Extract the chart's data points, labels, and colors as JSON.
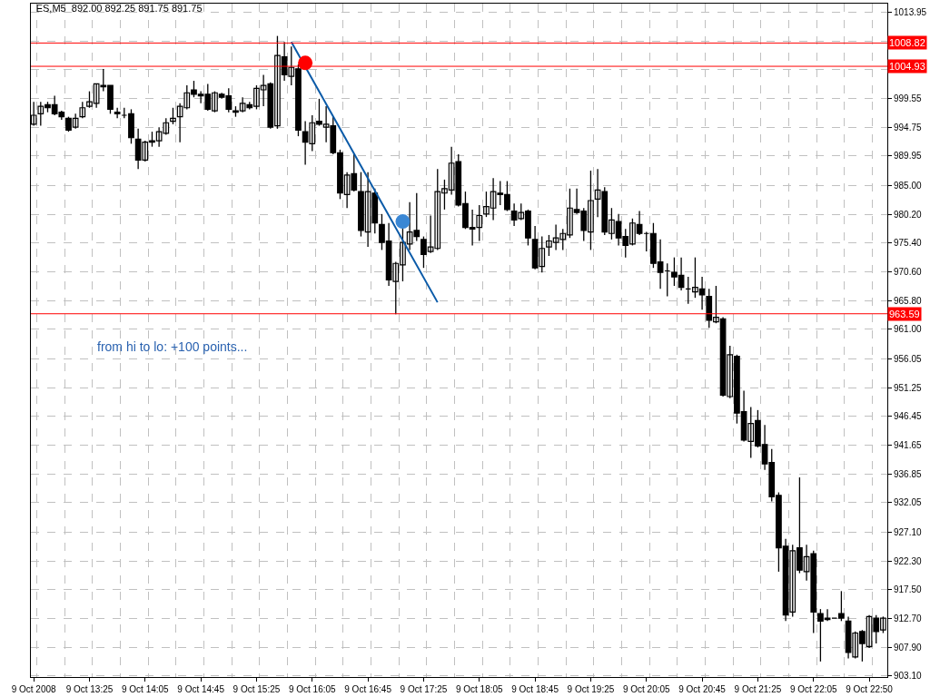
{
  "chart_data": {
    "type": "candlestick",
    "title": "ES,M5  892.00 892.25 891.75 891.75",
    "categories": [
      "9 Oct 2008",
      null,
      null,
      null,
      null,
      null,
      null,
      null,
      "9 Oct 13:25",
      null,
      null,
      null,
      null,
      null,
      null,
      null,
      "9 Oct 14:05",
      null,
      null,
      null,
      null,
      null,
      null,
      null,
      "9 Oct 14:45",
      null,
      null,
      null,
      null,
      null,
      null,
      null,
      "9 Oct 15:25",
      null,
      null,
      null,
      null,
      null,
      null,
      null,
      "9 Oct 16:05",
      null,
      null,
      null,
      null,
      null,
      null,
      null,
      "9 Oct 16:45",
      null,
      null,
      null,
      null,
      null,
      null,
      null,
      "9 Oct 17:25",
      null,
      null,
      null,
      null,
      null,
      null,
      null,
      "9 Oct 18:05",
      null,
      null,
      null,
      null,
      null,
      null,
      null,
      "9 Oct 18:45",
      null,
      null,
      null,
      null,
      null,
      null,
      null,
      "9 Oct 19:25",
      null,
      null,
      null,
      null,
      null,
      null,
      null,
      "9 Oct 20:05",
      null,
      null,
      null,
      null,
      null,
      null,
      null,
      "9 Oct 20:45",
      null,
      null,
      null,
      null,
      null,
      null,
      null,
      "9 Oct 21:25",
      null,
      null,
      null,
      null,
      null,
      null,
      null,
      "9 Oct 22:05",
      null,
      null,
      null,
      null,
      null,
      null,
      null,
      "9 Oct 22:50",
      null,
      null
    ],
    "ohlc": [
      [
        995.25,
        999.0,
        995.0,
        996.75
      ],
      [
        997.0,
        999.0,
        995.0,
        998.25
      ],
      [
        998.5,
        999.0,
        997.25,
        998.0
      ],
      [
        998.5,
        1000.0,
        996.75,
        997.0
      ],
      [
        997.25,
        997.5,
        996.0,
        996.5
      ],
      [
        996.25,
        996.5,
        994.0,
        994.25
      ],
      [
        994.75,
        997.0,
        994.5,
        996.25
      ],
      [
        996.5,
        999.0,
        996.25,
        998.0
      ],
      [
        998.25,
        1000.75,
        998.0,
        999.0
      ],
      [
        998.75,
        1002.0,
        998.0,
        1002.0
      ],
      [
        1001.75,
        1004.5,
        1000.75,
        1001.5
      ],
      [
        1001.75,
        1001.75,
        997.0,
        997.75
      ],
      [
        997.25,
        998.0,
        996.25,
        997.0
      ],
      [
        996.75,
        998.0,
        996.25,
        996.75
      ],
      [
        997.0,
        997.75,
        992.0,
        993.0
      ],
      [
        992.75,
        994.5,
        987.75,
        989.25
      ],
      [
        989.25,
        992.5,
        989.0,
        992.25
      ],
      [
        992.5,
        994.0,
        991.5,
        992.25
      ],
      [
        992.5,
        994.75,
        991.5,
        994.0
      ],
      [
        993.75,
        996.25,
        993.5,
        995.5
      ],
      [
        995.75,
        998.0,
        995.25,
        996.25
      ],
      [
        996.5,
        998.75,
        992.25,
        998.25
      ],
      [
        998.0,
        1001.75,
        997.75,
        1000.5
      ],
      [
        1001.0,
        1002.5,
        999.75,
        1000.25
      ],
      [
        1000.25,
        1000.75,
        998.75,
        1000.0
      ],
      [
        1000.25,
        1002.0,
        997.5,
        997.75
      ],
      [
        997.5,
        1000.75,
        997.25,
        1000.5
      ],
      [
        1000.25,
        1000.5,
        999.5,
        999.75
      ],
      [
        1000.0,
        1001.25,
        997.25,
        997.75
      ],
      [
        997.5,
        998.25,
        996.5,
        997.25
      ],
      [
        997.5,
        999.75,
        997.25,
        998.75
      ],
      [
        998.5,
        999.0,
        997.75,
        998.0
      ],
      [
        998.25,
        1001.75,
        997.75,
        1001.25
      ],
      [
        1001.0,
        1003.5,
        998.25,
        1001.75
      ],
      [
        1002.0,
        1002.25,
        994.5,
        994.75
      ],
      [
        995.0,
        1010.0,
        994.5,
        1006.75
      ],
      [
        1006.5,
        1009.0,
        1002.5,
        1003.5
      ],
      [
        1003.25,
        1008.25,
        1001.75,
        1004.75
      ],
      [
        1004.5,
        1005.25,
        993.25,
        994.25
      ],
      [
        994.0,
        995.75,
        988.5,
        992.25
      ],
      [
        992.0,
        996.75,
        990.75,
        995.5
      ],
      [
        995.75,
        999.5,
        995.0,
        995.25
      ],
      [
        994.75,
        998.25,
        992.25,
        995.25
      ],
      [
        995.0,
        996.5,
        990.25,
        990.5
      ],
      [
        990.5,
        991.0,
        982.75,
        983.75
      ],
      [
        983.5,
        987.25,
        981.25,
        986.75
      ],
      [
        987.0,
        990.25,
        984.0,
        984.25
      ],
      [
        984.0,
        987.25,
        976.5,
        977.5
      ],
      [
        977.25,
        987.25,
        974.75,
        984.0
      ],
      [
        983.75,
        984.5,
        977.0,
        978.75
      ],
      [
        978.5,
        980.25,
        974.25,
        975.5
      ],
      [
        975.75,
        978.75,
        968.25,
        969.25
      ],
      [
        969.0,
        972.25,
        963.5,
        972.0
      ],
      [
        971.75,
        978.25,
        969.0,
        975.5
      ],
      [
        975.25,
        982.25,
        974.25,
        977.25
      ],
      [
        977.5,
        983.75,
        975.75,
        976.5
      ],
      [
        976.0,
        976.5,
        971.25,
        973.5
      ],
      [
        974.0,
        980.0,
        973.75,
        974.75
      ],
      [
        974.5,
        987.75,
        974.25,
        984.0
      ],
      [
        983.75,
        986.0,
        981.0,
        984.5
      ],
      [
        984.25,
        991.5,
        983.5,
        988.75
      ],
      [
        989.0,
        990.25,
        981.5,
        981.75
      ],
      [
        982.0,
        984.0,
        977.75,
        978.0
      ],
      [
        978.0,
        981.0,
        975.0,
        977.75
      ],
      [
        978.0,
        981.75,
        975.75,
        980.0
      ],
      [
        980.25,
        984.0,
        979.75,
        981.5
      ],
      [
        981.25,
        986.25,
        979.25,
        984.0
      ],
      [
        983.75,
        985.75,
        981.75,
        983.5
      ],
      [
        983.5,
        985.75,
        980.75,
        981.0
      ],
      [
        980.75,
        982.0,
        978.25,
        979.25
      ],
      [
        979.5,
        982.0,
        979.25,
        980.5
      ],
      [
        980.75,
        981.0,
        975.0,
        976.25
      ],
      [
        976.0,
        978.25,
        971.0,
        971.25
      ],
      [
        971.5,
        976.5,
        970.5,
        974.5
      ],
      [
        974.75,
        976.75,
        973.25,
        975.75
      ],
      [
        975.5,
        978.5,
        974.25,
        976.25
      ],
      [
        976.0,
        977.75,
        974.25,
        977.0
      ],
      [
        976.75,
        984.5,
        976.25,
        981.25
      ],
      [
        981.0,
        984.5,
        980.25,
        980.5
      ],
      [
        980.75,
        981.25,
        975.75,
        977.5
      ],
      [
        977.25,
        987.5,
        974.25,
        982.5
      ],
      [
        982.75,
        987.75,
        979.75,
        984.25
      ],
      [
        984.0,
        984.75,
        976.75,
        977.25
      ],
      [
        977.0,
        981.25,
        976.0,
        979.25
      ],
      [
        979.0,
        980.25,
        975.0,
        976.25
      ],
      [
        976.5,
        977.75,
        973.0,
        975.0
      ],
      [
        975.25,
        979.5,
        975.0,
        978.75
      ],
      [
        978.5,
        980.75,
        976.75,
        977.0
      ],
      [
        977.0,
        977.25,
        974.0,
        977.0
      ],
      [
        977.0,
        978.75,
        971.25,
        972.0
      ],
      [
        972.25,
        976.0,
        967.75,
        970.5
      ],
      [
        970.75,
        972.0,
        966.5,
        970.75
      ],
      [
        970.5,
        973.0,
        968.25,
        969.75
      ],
      [
        970.0,
        973.0,
        967.5,
        968.0
      ],
      [
        967.75,
        969.75,
        965.25,
        967.75
      ],
      [
        967.25,
        973.0,
        966.25,
        968.0
      ],
      [
        967.75,
        969.75,
        964.25,
        966.75
      ],
      [
        966.5,
        967.75,
        961.25,
        962.5
      ],
      [
        962.25,
        968.25,
        962.0,
        963.0
      ],
      [
        962.75,
        963.0,
        949.75,
        950.0
      ],
      [
        949.75,
        958.25,
        949.5,
        956.75
      ],
      [
        956.5,
        956.75,
        945.25,
        947.0
      ],
      [
        947.25,
        950.75,
        942.25,
        942.5
      ],
      [
        942.25,
        948.0,
        939.5,
        945.25
      ],
      [
        945.75,
        947.5,
        941.25,
        941.5
      ],
      [
        941.75,
        945.0,
        937.5,
        938.5
      ],
      [
        938.75,
        941.0,
        932.25,
        933.0
      ],
      [
        933.25,
        933.75,
        920.5,
        924.5
      ],
      [
        924.75,
        926.0,
        912.25,
        913.25
      ],
      [
        913.75,
        925.0,
        913.0,
        924.0
      ],
      [
        924.5,
        936.25,
        920.25,
        920.75
      ],
      [
        920.5,
        925.0,
        919.0,
        923.0
      ],
      [
        923.5,
        924.0,
        910.25,
        913.75
      ],
      [
        913.5,
        914.25,
        905.5,
        912.25
      ],
      [
        912.75,
        914.25,
        912.25,
        912.5
      ],
      [
        912.75,
        912.75,
        912.75,
        912.75
      ],
      [
        913.5,
        917.25,
        912.25,
        912.75
      ],
      [
        912.25,
        913.0,
        906.0,
        907.0
      ],
      [
        906.25,
        910.5,
        906.0,
        910.25
      ],
      [
        910.5,
        910.75,
        905.5,
        908.5
      ],
      [
        908.0,
        913.25,
        907.75,
        913.0
      ],
      [
        912.75,
        913.25,
        908.5,
        910.5
      ],
      [
        910.75,
        913.0,
        910.25,
        912.75
      ]
    ],
    "color": "#000000",
    "ylim": [
      902.9,
      1015.4
    ],
    "yticks": [
      {
        "value": 903.1,
        "label": "903.10"
      },
      {
        "value": 907.9,
        "label": "907.90"
      },
      {
        "value": 912.7,
        "label": "912.70"
      },
      {
        "value": 917.5,
        "label": "917.50"
      },
      {
        "value": 922.3,
        "label": "922.30"
      },
      {
        "value": 927.1,
        "label": "927.10"
      },
      {
        "value": 932.05,
        "label": "932.05"
      },
      {
        "value": 936.85,
        "label": "936.85"
      },
      {
        "value": 941.65,
        "label": "941.65"
      },
      {
        "value": 946.45,
        "label": "946.45"
      },
      {
        "value": 951.25,
        "label": "951.25"
      },
      {
        "value": 956.05,
        "label": "956.05"
      },
      {
        "value": 961.0,
        "label": "961.00"
      },
      {
        "value": 965.8,
        "label": "965.80"
      },
      {
        "value": 970.6,
        "label": "970.60"
      },
      {
        "value": 975.4,
        "label": "975.40"
      },
      {
        "value": 980.2,
        "label": "980.20"
      },
      {
        "value": 985.0,
        "label": "985.00"
      },
      {
        "value": 989.95,
        "label": "989.95"
      },
      {
        "value": 994.75,
        "label": "994.75"
      },
      {
        "value": 999.55,
        "label": "999.55"
      },
      {
        "value": 1004.35,
        "label": null
      },
      {
        "value": 1009.15,
        "label": null
      },
      {
        "value": 1013.95,
        "label": "1013.95"
      }
    ],
    "grid": true,
    "ref_lines": [
      {
        "axis": "y",
        "value": 1008.82,
        "label": "1008.82",
        "color": "#ff0000"
      },
      {
        "axis": "y",
        "value": 1004.93,
        "label": "1004.93",
        "color": "#ff0000"
      },
      {
        "axis": "y",
        "value": 963.59,
        "label": "963.59",
        "color": "#ff0000"
      }
    ],
    "series": [
      {
        "type": "line",
        "color": "#0a5aa8",
        "values": [
          null,
          null,
          null,
          null,
          null,
          null,
          null,
          null,
          null,
          null,
          null,
          null,
          null,
          null,
          null,
          null,
          null,
          null,
          null,
          null,
          null,
          null,
          null,
          null,
          null,
          null,
          null,
          null,
          null,
          null,
          null,
          null,
          null,
          null,
          null,
          null,
          null,
          1009.0,
          null,
          null,
          null,
          null,
          null,
          null,
          null,
          null,
          null,
          null,
          null,
          null,
          null,
          null,
          null,
          null,
          null,
          null,
          null,
          null,
          965.5,
          null,
          null,
          null,
          null,
          null,
          null,
          null,
          null,
          null,
          null,
          null,
          null,
          null,
          null,
          null,
          null,
          null,
          null,
          null,
          null,
          null,
          null,
          null,
          null,
          null,
          null,
          null,
          null,
          null,
          null,
          null,
          null,
          null,
          null,
          null,
          null,
          null,
          null,
          null,
          null,
          null,
          null,
          null,
          null,
          null,
          null,
          null,
          null,
          null,
          null,
          null,
          null,
          null,
          null,
          null,
          null,
          null,
          null,
          null,
          null,
          null,
          null,
          null,
          null
        ]
      },
      {
        "type": "scatter",
        "color": "#ff0000",
        "marker": "circle",
        "values": [
          null,
          null,
          null,
          null,
          null,
          null,
          null,
          null,
          null,
          null,
          null,
          null,
          null,
          null,
          null,
          null,
          null,
          null,
          null,
          null,
          null,
          null,
          null,
          null,
          null,
          null,
          null,
          null,
          null,
          null,
          null,
          null,
          null,
          null,
          null,
          null,
          null,
          null,
          null,
          1005.5,
          null,
          null,
          null,
          null,
          null,
          null,
          null,
          null,
          null,
          null,
          null,
          null,
          null,
          null,
          null,
          null,
          null,
          null,
          null,
          null,
          null,
          null,
          null,
          null,
          null,
          null,
          null,
          null,
          null,
          null,
          null,
          null,
          null,
          null,
          null,
          null,
          null,
          null,
          null,
          null,
          null,
          null,
          null,
          null,
          null,
          null,
          null,
          null,
          null,
          null,
          null,
          null,
          null,
          null,
          null,
          null,
          null,
          null,
          null,
          null,
          null,
          null,
          null,
          null,
          null,
          null,
          null,
          null,
          null,
          null,
          null,
          null,
          null,
          null,
          null,
          null,
          null,
          null,
          null,
          null,
          null,
          null,
          null
        ]
      },
      {
        "type": "scatter",
        "color": "#3a87d4",
        "marker": "circle",
        "values": [
          null,
          null,
          null,
          null,
          null,
          null,
          null,
          null,
          null,
          null,
          null,
          null,
          null,
          null,
          null,
          null,
          null,
          null,
          null,
          null,
          null,
          null,
          null,
          null,
          null,
          null,
          null,
          null,
          null,
          null,
          null,
          null,
          null,
          null,
          null,
          null,
          null,
          null,
          null,
          null,
          null,
          null,
          null,
          null,
          null,
          null,
          null,
          null,
          null,
          null,
          null,
          null,
          null,
          979.0,
          null,
          null,
          null,
          null,
          null,
          null,
          null,
          null,
          null,
          null,
          null,
          null,
          null,
          null,
          null,
          null,
          null,
          null,
          null,
          null,
          null,
          null,
          null,
          null,
          null,
          null,
          null,
          null,
          null,
          null,
          null,
          null,
          null,
          null,
          null,
          null,
          null,
          null,
          null,
          null,
          null,
          null,
          null,
          null,
          null,
          null,
          null,
          null,
          null,
          null,
          null,
          null,
          null,
          null,
          null,
          null,
          null,
          null,
          null,
          null,
          null,
          null,
          null,
          null,
          null,
          null,
          null,
          null,
          null
        ]
      }
    ],
    "annotations": [
      "from hi to lo: +100 points..."
    ]
  }
}
